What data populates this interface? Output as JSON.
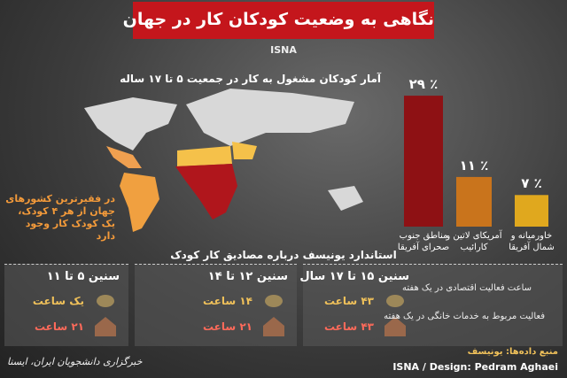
{
  "header": {
    "title": "نگاهی به وضعیت کودکان کار در جهان",
    "brand": "ISNA"
  },
  "chart_data": {
    "type": "bar",
    "title": "آمار کودکان مشغول به کار در جمعیت ۵ تا ۱۷ ساله",
    "categories": [
      "مناطق جنوب صحرای آفریقا",
      "آمریکای لاتین و کارائیب",
      "خاورمیانه و شمال آفریقا"
    ],
    "values": [
      29,
      11,
      7
    ],
    "value_labels": [
      "٪ ۲۹",
      "٪ ۱۱",
      "٪ ۷"
    ],
    "colors": [
      "#8e1114",
      "#c9741c",
      "#e0a81e"
    ]
  },
  "map_note": "در فقیرترین کشورهای جهان از هر ۴ کودک، یک کودک کار وجود دارد",
  "standard": {
    "title": "استاندارد یونیسف درباره مصادیق کار کودک",
    "groups": [
      {
        "age": "سنین ۵ تا ۱۱",
        "economic": "یک ساعت",
        "domestic": "۲۱ ساعت"
      },
      {
        "age": "سنین ۱۲ تا ۱۴",
        "economic": "۱۴ ساعت",
        "domestic": "۲۱ ساعت"
      },
      {
        "age": "سنین ۱۵ تا ۱۷ سال",
        "economic": "۴۳ ساعت",
        "domestic": "۴۳ ساعت"
      }
    ],
    "legend": [
      "ساعت فعالیت اقتصادی در یک هفته",
      "فعالیت مربوط به خدمات خانگی در یک هفته"
    ]
  },
  "footer": {
    "source": "منبع داده‌ها: یونیسف",
    "credit": "ISNA / Design: Pedram Aghaei",
    "logo": "خبرگزاری دانشجویان ایران، ایسنا"
  }
}
